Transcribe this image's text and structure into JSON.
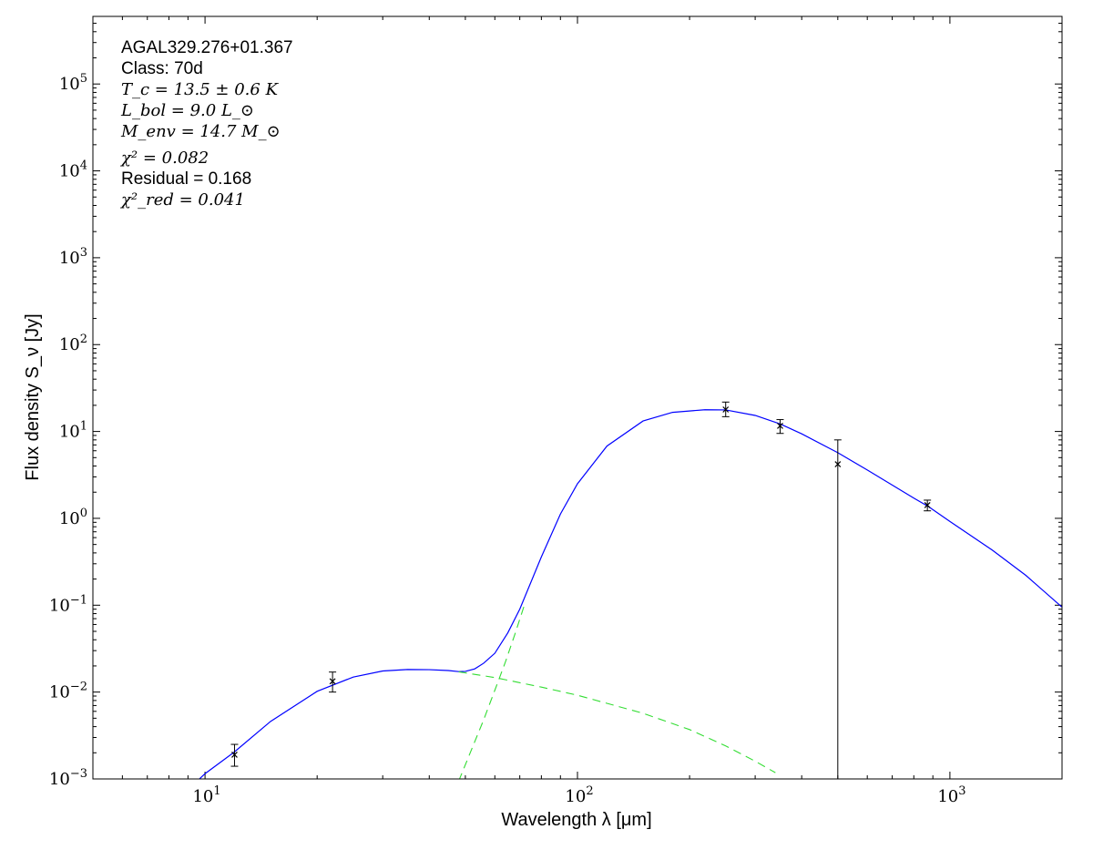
{
  "chart_data": {
    "type": "line",
    "xscale": "log",
    "yscale": "log",
    "xlim": [
      5,
      2000
    ],
    "ylim": [
      0.001,
      600000
    ],
    "xlabel": "Wavelength λ [μm]",
    "ylabel": "Flux density S_ν [Jy]",
    "x_ticks": [
      {
        "value": 10,
        "base": "10",
        "exp": "1"
      },
      {
        "value": 100,
        "base": "10",
        "exp": "2"
      },
      {
        "value": 1000,
        "base": "10",
        "exp": "3"
      }
    ],
    "y_ticks": [
      {
        "value": 0.001,
        "base": "10",
        "exp": "−3"
      },
      {
        "value": 0.01,
        "base": "10",
        "exp": "−2"
      },
      {
        "value": 0.1,
        "base": "10",
        "exp": "−1"
      },
      {
        "value": 1,
        "base": "10",
        "exp": "0"
      },
      {
        "value": 10,
        "base": "10",
        "exp": "1"
      },
      {
        "value": 100,
        "base": "10",
        "exp": "2"
      },
      {
        "value": 1000,
        "base": "10",
        "exp": "3"
      },
      {
        "value": 10000,
        "base": "10",
        "exp": "4"
      },
      {
        "value": 100000,
        "base": "10",
        "exp": "5"
      }
    ],
    "annotations": {
      "source": "AGAL329.276+01.367",
      "class_label": "Class: 70d",
      "tc": "T_c = 13.5 ± 0.6 K",
      "lbol": "L_bol = 9.0 L_⊙",
      "menv": "M_env = 14.7 M_⊙",
      "chi2": "χ² = 0.082",
      "residual": "Residual = 0.168",
      "chi2red": "χ²_red = 0.041"
    },
    "series": [
      {
        "style": "solid",
        "color": "#0000ff",
        "x": [
          9.2,
          10,
          12,
          15,
          20,
          25,
          30,
          35,
          40,
          45,
          48,
          50,
          53,
          56,
          60,
          65,
          70,
          80,
          90,
          100,
          120,
          150,
          180,
          220,
          250,
          300,
          350,
          400,
          500,
          600,
          800,
          870,
          1000,
          1300,
          1600,
          2000
        ],
        "y": [
          0.00082,
          0.00115,
          0.00205,
          0.0046,
          0.0102,
          0.0149,
          0.0175,
          0.0182,
          0.0181,
          0.0177,
          0.0172,
          0.0173,
          0.0185,
          0.0215,
          0.028,
          0.048,
          0.09,
          0.36,
          1.12,
          2.5,
          6.8,
          13.2,
          16.6,
          17.8,
          17.7,
          15.3,
          12.2,
          9.4,
          5.7,
          3.6,
          1.71,
          1.39,
          0.92,
          0.43,
          0.22,
          0.095
        ]
      },
      {
        "style": "dashed",
        "color": "#33dd33",
        "x": [
          48,
          52,
          56,
          60,
          64,
          68,
          72
        ],
        "y": [
          0.00095,
          0.0022,
          0.0048,
          0.0105,
          0.022,
          0.047,
          0.1
        ]
      },
      {
        "style": "dashed",
        "color": "#33dd33",
        "x": [
          48,
          60,
          80,
          100,
          150,
          200,
          250,
          300,
          340
        ],
        "y": [
          0.0171,
          0.0147,
          0.0114,
          0.0092,
          0.0057,
          0.0037,
          0.0024,
          0.0016,
          0.00118
        ]
      }
    ],
    "points": [
      {
        "x": 12,
        "y": 0.0019,
        "ylo": 0.0014,
        "yhi": 0.0025
      },
      {
        "x": 22,
        "y": 0.0133,
        "ylo": 0.01,
        "yhi": 0.017
      },
      {
        "x": 250,
        "y": 17.9,
        "ylo": 14.8,
        "yhi": 21.8
      },
      {
        "x": 350,
        "y": 11.6,
        "ylo": 9.5,
        "yhi": 13.7
      },
      {
        "x": 500,
        "y": 4.2,
        "ylo": 0.001,
        "yhi": 8.0
      },
      {
        "x": 870,
        "y": 1.42,
        "ylo": 1.22,
        "yhi": 1.62
      }
    ]
  }
}
